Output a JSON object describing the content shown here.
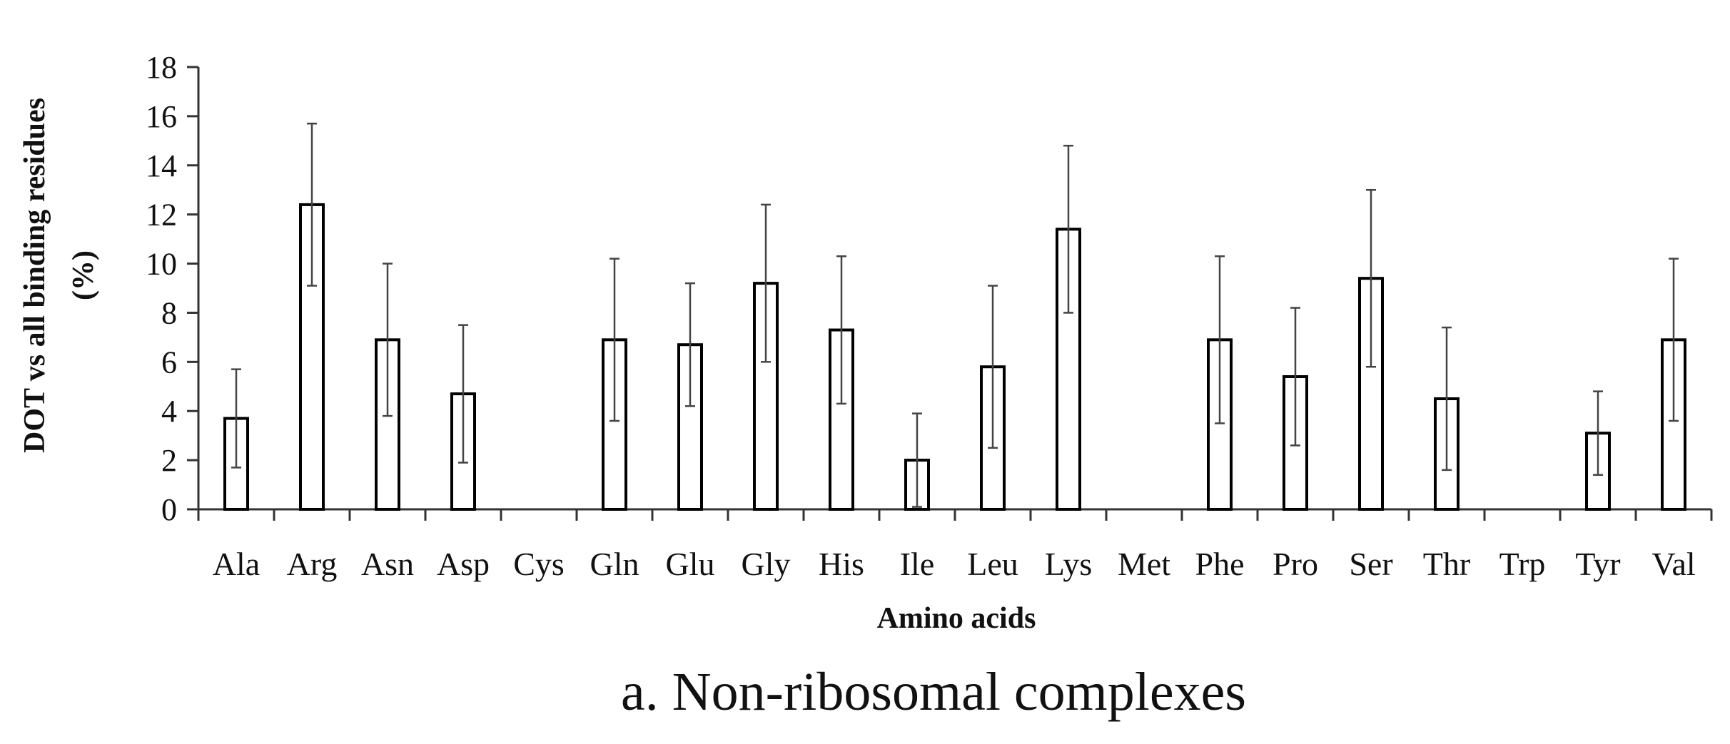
{
  "chart_data": {
    "type": "bar",
    "caption": "a. Non-ribosomal complexes",
    "xlabel": "Amino acids",
    "ylabel_line1": "DOT vs all binding residues",
    "ylabel_line2": "(%)",
    "ylim": [
      0,
      18
    ],
    "yticks": [
      0,
      2,
      4,
      6,
      8,
      10,
      12,
      14,
      16,
      18
    ],
    "grid": false,
    "legend": "none",
    "categories": [
      "Ala",
      "Arg",
      "Asn",
      "Asp",
      "Cys",
      "Gln",
      "Glu",
      "Gly",
      "His",
      "Ile",
      "Leu",
      "Lys",
      "Met",
      "Phe",
      "Pro",
      "Ser",
      "Thr",
      "Trp",
      "Tyr",
      "Val"
    ],
    "values": [
      3.7,
      12.4,
      6.9,
      4.7,
      0,
      6.9,
      6.7,
      9.2,
      7.3,
      2.0,
      5.8,
      11.4,
      0,
      6.9,
      5.4,
      9.4,
      4.5,
      0,
      3.1,
      6.9
    ],
    "error_bars": [
      2.0,
      3.3,
      3.1,
      2.8,
      0,
      3.3,
      2.5,
      3.2,
      3.0,
      1.9,
      3.3,
      3.4,
      0,
      3.4,
      2.8,
      3.6,
      2.9,
      0,
      1.7,
      3.3
    ],
    "colors": {
      "bar_fill": "#ffffff",
      "bar_stroke": "#000000",
      "axis": "#333333",
      "error_bar": "#444444"
    }
  }
}
